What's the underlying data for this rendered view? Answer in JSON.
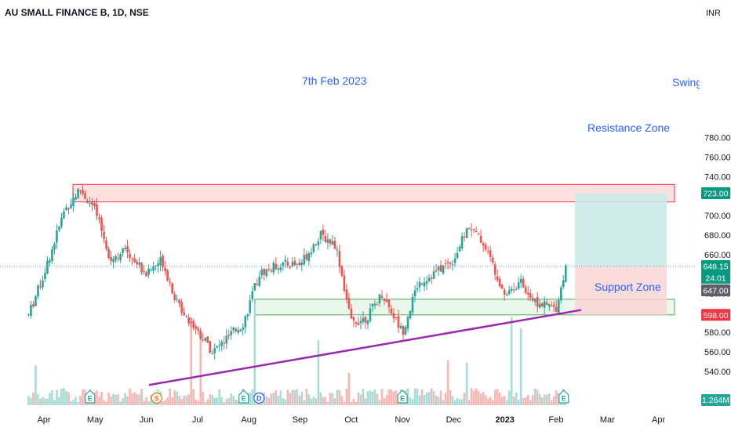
{
  "symbol_header": "AU SMALL FINANCE B, 1D, NSE",
  "currency_label": "INR",
  "colors": {
    "up": "#26a69a",
    "down": "#ef5350",
    "trendline": "#9c27b0",
    "annotation": "#2962ff",
    "resistance_fill": "#fde0e0",
    "resistance_border": "#f23645",
    "support_fill": "#e8f5e9",
    "support_border": "#4caf50",
    "target_fill": "#cdeaea",
    "stop_fill": "#fad6d6"
  },
  "annotations": {
    "date": "7th Feb 2023",
    "swing": "Swing",
    "resistance": "Resistance Zone",
    "support": "Support Zone"
  },
  "chart_data": {
    "type": "candlestick",
    "title": "AU SMALL FINANCE B, 1D, NSE",
    "ylabel": "INR",
    "ylim": [
      526,
      808
    ],
    "y_ticks": [
      540,
      560,
      580,
      600,
      620,
      640,
      660,
      680,
      700,
      720,
      740,
      760,
      780
    ],
    "x_ticks": [
      "Apr",
      "May",
      "Jun",
      "Jul",
      "Aug",
      "Sep",
      "Oct",
      "Nov",
      "Dec",
      "2023",
      "Feb",
      "Mar",
      "Apr"
    ],
    "price_badges": [
      {
        "label": "723.00",
        "value": 723,
        "color": "#089981"
      },
      {
        "label": "648.15",
        "value": 648.15,
        "color": "#089981"
      },
      {
        "label": "24:01",
        "value": 640,
        "color": "#089981"
      },
      {
        "label": "647.00",
        "value": 647,
        "color": "#5d606b"
      },
      {
        "label": "598.00",
        "value": 598,
        "color": "#f23645"
      }
    ],
    "last_price": 648.15,
    "volume_badge": "1.264M",
    "zones": {
      "resistance": [
        714,
        732
      ],
      "support": [
        598,
        614
      ],
      "target": [
        648,
        723
      ],
      "stop": [
        598,
        648
      ]
    },
    "trendline": {
      "from": [
        "2022-06-01",
        526
      ],
      "to": [
        "2023-02-14",
        603
      ]
    },
    "events": [
      {
        "letter": "E",
        "month_index": 0.9,
        "kind": "earnings"
      },
      {
        "letter": "S",
        "month_index": 2.2,
        "kind": "split"
      },
      {
        "letter": "E",
        "month_index": 3.9,
        "kind": "earnings"
      },
      {
        "letter": "D",
        "month_index": 4.2,
        "kind": "dividend"
      },
      {
        "letter": "E",
        "month_index": 7.0,
        "kind": "earnings"
      },
      {
        "letter": "E",
        "month_index": 10.15,
        "kind": "earnings"
      }
    ],
    "series": [
      {
        "name": "close",
        "anchors": [
          [
            -0.3,
            598
          ],
          [
            0.0,
            640
          ],
          [
            0.4,
            705
          ],
          [
            0.7,
            727
          ],
          [
            1.0,
            705
          ],
          [
            1.3,
            655
          ],
          [
            1.6,
            665
          ],
          [
            2.0,
            640
          ],
          [
            2.3,
            655
          ],
          [
            2.6,
            610
          ],
          [
            3.0,
            582
          ],
          [
            3.3,
            560
          ],
          [
            3.6,
            575
          ],
          [
            3.9,
            590
          ],
          [
            4.2,
            640
          ],
          [
            4.6,
            650
          ],
          [
            5.0,
            650
          ],
          [
            5.4,
            680
          ],
          [
            5.7,
            670
          ],
          [
            6.0,
            590
          ],
          [
            6.3,
            595
          ],
          [
            6.6,
            620
          ],
          [
            7.0,
            580
          ],
          [
            7.3,
            630
          ],
          [
            7.6,
            640
          ],
          [
            8.0,
            655
          ],
          [
            8.3,
            690
          ],
          [
            8.6,
            670
          ],
          [
            9.0,
            620
          ],
          [
            9.3,
            632
          ],
          [
            9.6,
            610
          ],
          [
            10.0,
            605
          ],
          [
            10.2,
            649
          ]
        ]
      }
    ]
  }
}
